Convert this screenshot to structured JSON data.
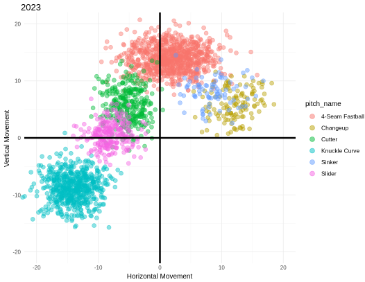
{
  "chart_data": {
    "type": "scatter",
    "title": "2023",
    "xlabel": "Horizontal Movement",
    "ylabel": "Vertical Movement",
    "xlim": [
      -22,
      22
    ],
    "ylim": [
      -22,
      22
    ],
    "xticks": [
      -20,
      -10,
      0,
      10,
      20
    ],
    "yticks": [
      -20,
      -10,
      0,
      10,
      20
    ],
    "reference_lines": {
      "x": 0,
      "y": 0
    },
    "grid": true,
    "legend": {
      "title": "pitch_name",
      "position": "right"
    },
    "series": [
      {
        "name": "4-Seam Fastball",
        "color": "#F8766D",
        "center": [
          2,
          14
        ],
        "spread": [
          3.6,
          2.2
        ],
        "approx_points": 900,
        "sample_points": [
          [
            -3,
            10
          ],
          [
            0,
            12
          ],
          [
            2,
            15
          ],
          [
            4,
            17
          ],
          [
            6,
            13
          ],
          [
            -2,
            14
          ],
          [
            1,
            18
          ],
          [
            5,
            11
          ]
        ]
      },
      {
        "name": "Changeup",
        "color": "#B79F00",
        "center": [
          12,
          6
        ],
        "spread": [
          3,
          2.4
        ],
        "approx_points": 120,
        "sample_points": [
          [
            8,
            3
          ],
          [
            10,
            6
          ],
          [
            12,
            7
          ],
          [
            14,
            5
          ],
          [
            15,
            8
          ],
          [
            11,
            10
          ]
        ]
      },
      {
        "name": "Cutter",
        "color": "#00BA38",
        "center": [
          -5,
          5.5
        ],
        "spread": [
          2.2,
          2.8
        ],
        "approx_points": 300,
        "sample_points": [
          [
            -8,
            4
          ],
          [
            -6,
            7
          ],
          [
            -4,
            5
          ],
          [
            -3,
            10
          ],
          [
            -5,
            2
          ],
          [
            -7,
            8
          ]
        ]
      },
      {
        "name": "Knuckle Curve",
        "color": "#00BFC4",
        "center": [
          -14,
          -9
        ],
        "spread": [
          2.6,
          2.5
        ],
        "approx_points": 600,
        "sample_points": [
          [
            -18,
            -6
          ],
          [
            -15,
            -9
          ],
          [
            -13,
            -12
          ],
          [
            -11,
            -7
          ],
          [
            -16,
            -13
          ],
          [
            -12,
            -4
          ]
        ]
      },
      {
        "name": "Sinker",
        "color": "#619CFF",
        "center": [
          9,
          8
        ],
        "spread": [
          3,
          2.5
        ],
        "approx_points": 80,
        "sample_points": [
          [
            7,
            5
          ],
          [
            9,
            9
          ],
          [
            10,
            11
          ],
          [
            6,
            12
          ],
          [
            8,
            7
          ]
        ]
      },
      {
        "name": "Slider",
        "color": "#F564E3",
        "center": [
          -8,
          0.5
        ],
        "spread": [
          2.2,
          2.1
        ],
        "approx_points": 250,
        "sample_points": [
          [
            -10,
            -1
          ],
          [
            -8,
            1
          ],
          [
            -6,
            3
          ],
          [
            -9,
            -3
          ],
          [
            -7,
            0
          ]
        ]
      }
    ]
  }
}
